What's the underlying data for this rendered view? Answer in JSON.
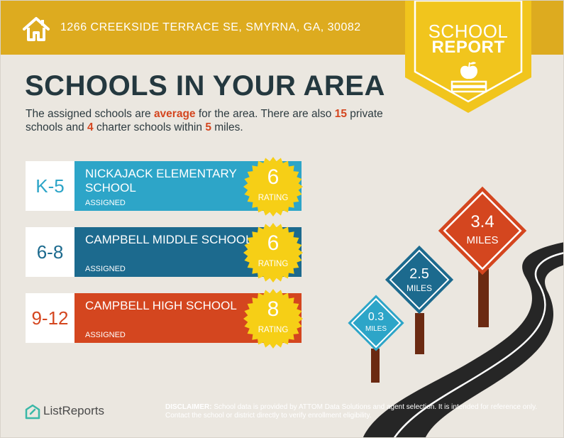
{
  "header": {
    "address": "1266 CREEKSIDE TERRACE SE, SMYRNA, GA, 30082",
    "bar_color": "#ddab1f",
    "icon": "house-icon"
  },
  "badge": {
    "line1": "SCHOOL",
    "line2": "REPORT",
    "color": "#f1c51d",
    "icon": "apple-on-books-icon"
  },
  "headline": "SCHOOLS IN YOUR AREA",
  "intro": {
    "t1": "The assigned schools are ",
    "h1": "average",
    "t2": " for the area. There are also ",
    "h2": "15",
    "t3": " private schools and ",
    "h3": "4",
    "t4": " charter schools within ",
    "h4": "5",
    "t5": " miles.",
    "highlight_color": "#d4461f"
  },
  "schools": [
    {
      "grade": "K-5",
      "name": "NICKAJACK ELEMENTARY SCHOOL",
      "status": "ASSIGNED",
      "rating": "6",
      "rating_label": "RATING",
      "color": "#2da5c8"
    },
    {
      "grade": "6-8",
      "name": "CAMPBELL MIDDLE SCHOOL",
      "status": "ASSIGNED",
      "rating": "6",
      "rating_label": "RATING",
      "color": "#1c6a8e"
    },
    {
      "grade": "9-12",
      "name": "CAMPBELL HIGH SCHOOL",
      "status": "ASSIGNED",
      "rating": "8",
      "rating_label": "RATING",
      "color": "#d4461f"
    }
  ],
  "seal_color": "#f6cf16",
  "distance_signs": [
    {
      "value": "0.3",
      "unit": "MILES",
      "color": "#2da5c8"
    },
    {
      "value": "2.5",
      "unit": "MILES",
      "color": "#1c6a8e"
    },
    {
      "value": "3.4",
      "unit": "MILES",
      "color": "#d4461f"
    }
  ],
  "footer": {
    "logo_text": "ListReports",
    "disclaimer_lead": "DISCLAIMER:",
    "disclaimer_body": " School data is provided by ATTOM Data Solutions and agent selection. It is intended for reference only. Contact the school or district directly to verify enrollment eligibility."
  }
}
